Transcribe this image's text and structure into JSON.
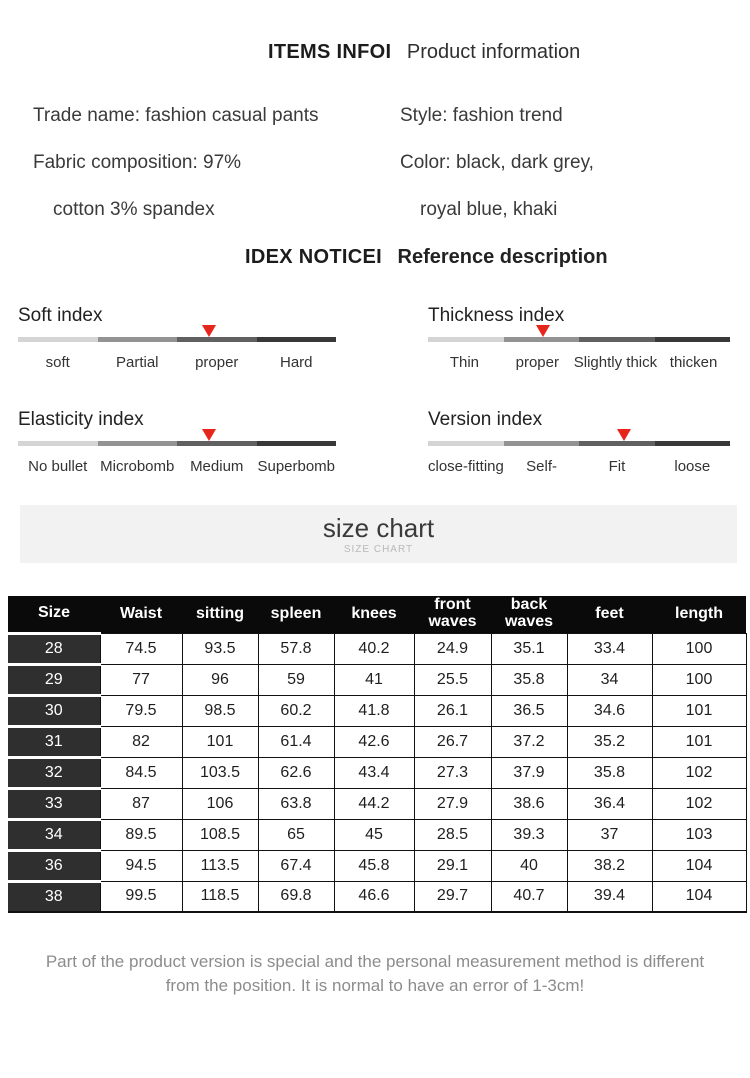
{
  "header": {
    "bold": "ITEMS INFOI",
    "regular": "Product information"
  },
  "product_info": {
    "left": [
      "Trade name: fashion casual pants",
      "Fabric composition: 97%",
      "cotton 3% spandex"
    ],
    "right": [
      "Style: fashion trend",
      "Color: black, dark grey,",
      "royal blue, khaki"
    ]
  },
  "notice_header": {
    "bold": "IDEX NOTICEI",
    "regular": "Reference description"
  },
  "indexes": [
    {
      "title": "Soft index",
      "labels": [
        "soft",
        "Partial",
        "proper",
        "Hard"
      ],
      "marker_pos_pct": 60
    },
    {
      "title": "Thickness index",
      "labels": [
        "Thin",
        "proper",
        "Slightly thick",
        "thicken"
      ],
      "marker_pos_pct": 38
    },
    {
      "title": "Elasticity index",
      "labels": [
        "No bullet",
        "Microbomb",
        "Medium",
        "Superbomb"
      ],
      "marker_pos_pct": 60
    },
    {
      "title": "Version index",
      "labels": [
        "close-fitting",
        "Self-",
        "Fit",
        "loose"
      ],
      "marker_pos_pct": 65
    }
  ],
  "banner": {
    "title": "size chart",
    "subtitle": "SIZE CHART"
  },
  "size_table": {
    "columns": [
      "Size",
      "Waist",
      "sitting",
      "spleen",
      "knees",
      "front\nwaves",
      "back\nwaves",
      "feet",
      "length"
    ],
    "rows": [
      [
        "28",
        "74.5",
        "93.5",
        "57.8",
        "40.2",
        "24.9",
        "35.1",
        "33.4",
        "100"
      ],
      [
        "29",
        "77",
        "96",
        "59",
        "41",
        "25.5",
        "35.8",
        "34",
        "100"
      ],
      [
        "30",
        "79.5",
        "98.5",
        "60.2",
        "41.8",
        "26.1",
        "36.5",
        "34.6",
        "101"
      ],
      [
        "31",
        "82",
        "101",
        "61.4",
        "42.6",
        "26.7",
        "37.2",
        "35.2",
        "101"
      ],
      [
        "32",
        "84.5",
        "103.5",
        "62.6",
        "43.4",
        "27.3",
        "37.9",
        "35.8",
        "102"
      ],
      [
        "33",
        "87",
        "106",
        "63.8",
        "44.2",
        "27.9",
        "38.6",
        "36.4",
        "102"
      ],
      [
        "34",
        "89.5",
        "108.5",
        "65",
        "45",
        "28.5",
        "39.3",
        "37",
        "103"
      ],
      [
        "36",
        "94.5",
        "113.5",
        "67.4",
        "45.8",
        "29.1",
        "40",
        "38.2",
        "104"
      ],
      [
        "38",
        "99.5",
        "118.5",
        "69.8",
        "46.6",
        "29.7",
        "40.7",
        "39.4",
        "104"
      ]
    ]
  },
  "footer": {
    "lines": [
      "Part of the product version is special and the personal measurement method is different",
      "from the position. It is normal to have an error of 1-3cm!"
    ]
  },
  "colors": {
    "marker_red": "#e8251b",
    "bar_segments": [
      "#d4d4d4",
      "#939393",
      "#606060",
      "#383838"
    ],
    "table_header_bg": "#0a0a0a",
    "size_column_bg": "#2f2f2f",
    "banner_bg": "#f2f2f2"
  }
}
